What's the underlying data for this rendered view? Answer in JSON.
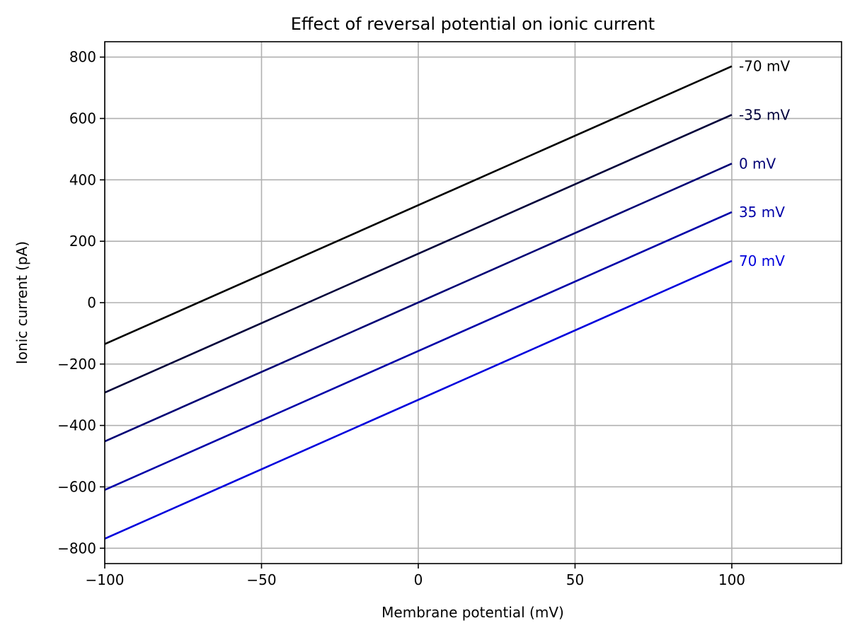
{
  "chart_data": {
    "type": "line",
    "title": "Effect of reversal potential on ionic current",
    "xlabel": "Membrane potential (mV)",
    "ylabel": "Ionic current (pA)",
    "xlim": [
      -100,
      135
    ],
    "ylim": [
      -850,
      850
    ],
    "grid": true,
    "x_ticks": [
      -100,
      -50,
      0,
      50,
      100
    ],
    "x_tick_labels": [
      "−100",
      "−50",
      "0",
      "50",
      "100"
    ],
    "y_ticks": [
      -800,
      -600,
      -400,
      -200,
      0,
      200,
      400,
      600,
      800
    ],
    "y_tick_labels": [
      "−800",
      "−600",
      "−400",
      "−200",
      "0",
      "200",
      "400",
      "600",
      "800"
    ],
    "x": [
      -100,
      100
    ],
    "series": [
      {
        "name": "-70 mV",
        "values": [
          -135,
          770
        ],
        "color": "#000000"
      },
      {
        "name": "-35 mV",
        "values": [
          -293,
          612
        ],
        "color": "#00003a"
      },
      {
        "name": "0 mV",
        "values": [
          -452,
          453
        ],
        "color": "#000075"
      },
      {
        "name": "35 mV",
        "values": [
          -610,
          295
        ],
        "color": "#0000a8"
      },
      {
        "name": "70 mV",
        "values": [
          -769,
          136
        ],
        "color": "#0000dc"
      }
    ]
  }
}
